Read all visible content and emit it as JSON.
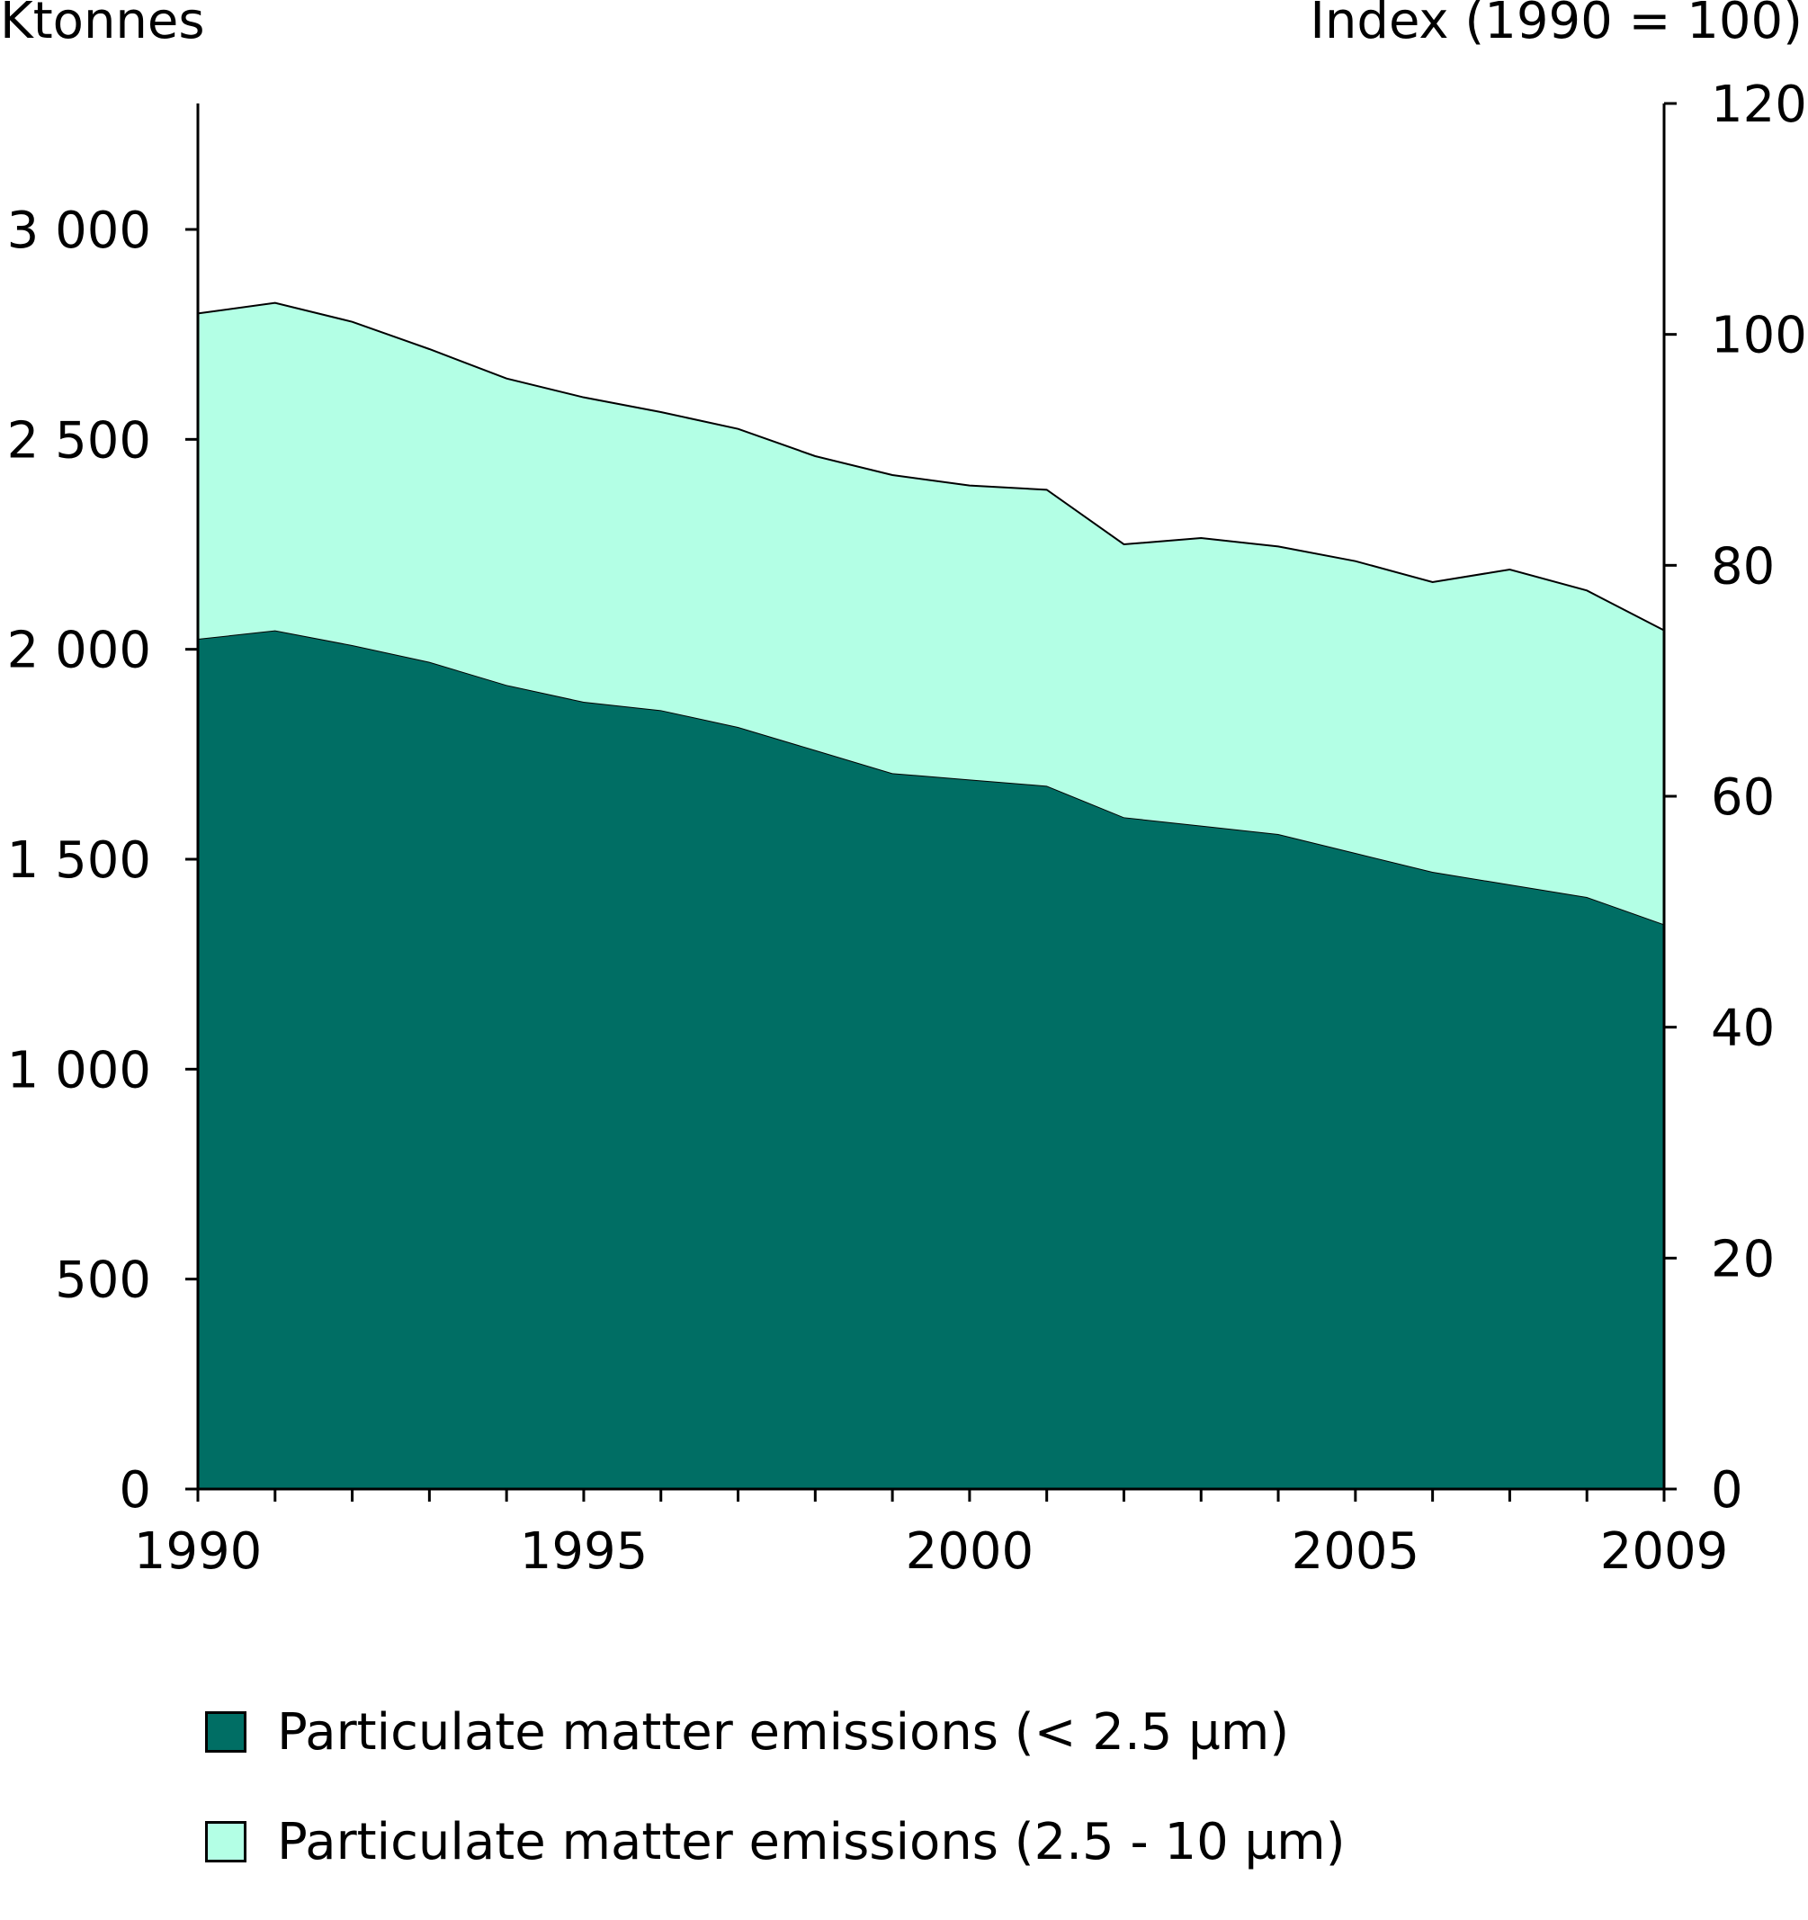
{
  "chart_data": {
    "type": "area",
    "stacked": true,
    "x": [
      1990,
      1991,
      1992,
      1993,
      1994,
      1995,
      1996,
      1997,
      1998,
      1999,
      2000,
      2001,
      2002,
      2003,
      2004,
      2005,
      2006,
      2007,
      2008,
      2009
    ],
    "series": [
      {
        "name": "Particulate matter emissions (< 2.5 µm)",
        "color": "#006e64",
        "values": [
          2025,
          2045,
          2010,
          1970,
          1915,
          1875,
          1855,
          1815,
          1760,
          1705,
          1690,
          1675,
          1600,
          1580,
          1560,
          1515,
          1470,
          1440,
          1410,
          1345
        ]
      },
      {
        "name": "Particulate matter emissions (2.5 - 10 µm)",
        "color": "#b3ffe5",
        "values": [
          775,
          780,
          770,
          745,
          730,
          725,
          710,
          710,
          700,
          710,
          700,
          705,
          650,
          685,
          685,
          695,
          690,
          750,
          730,
          700
        ]
      }
    ],
    "y_left": {
      "label": "Ktonnes",
      "range": [
        0,
        3300
      ],
      "ticks": [
        0,
        500,
        1000,
        1500,
        2000,
        2500,
        3000
      ],
      "tick_labels": [
        "0",
        "500",
        "1 000",
        "1 500",
        "2 000",
        "2 500",
        "3 000"
      ]
    },
    "y_right": {
      "label": "Index (1990 = 100)",
      "range": [
        0,
        120
      ],
      "ticks": [
        0,
        20,
        40,
        60,
        80,
        100,
        120
      ],
      "tick_labels": [
        "0",
        "20",
        "40",
        "60",
        "80",
        "100",
        "120"
      ]
    },
    "x_axis": {
      "range": [
        1990,
        2009
      ],
      "labeled_ticks": [
        1990,
        1995,
        2000,
        2005,
        2009
      ],
      "tick_labels": [
        "1990",
        "1995",
        "2000",
        "2005",
        "2009"
      ]
    },
    "grid": false,
    "legend_position": "bottom"
  }
}
